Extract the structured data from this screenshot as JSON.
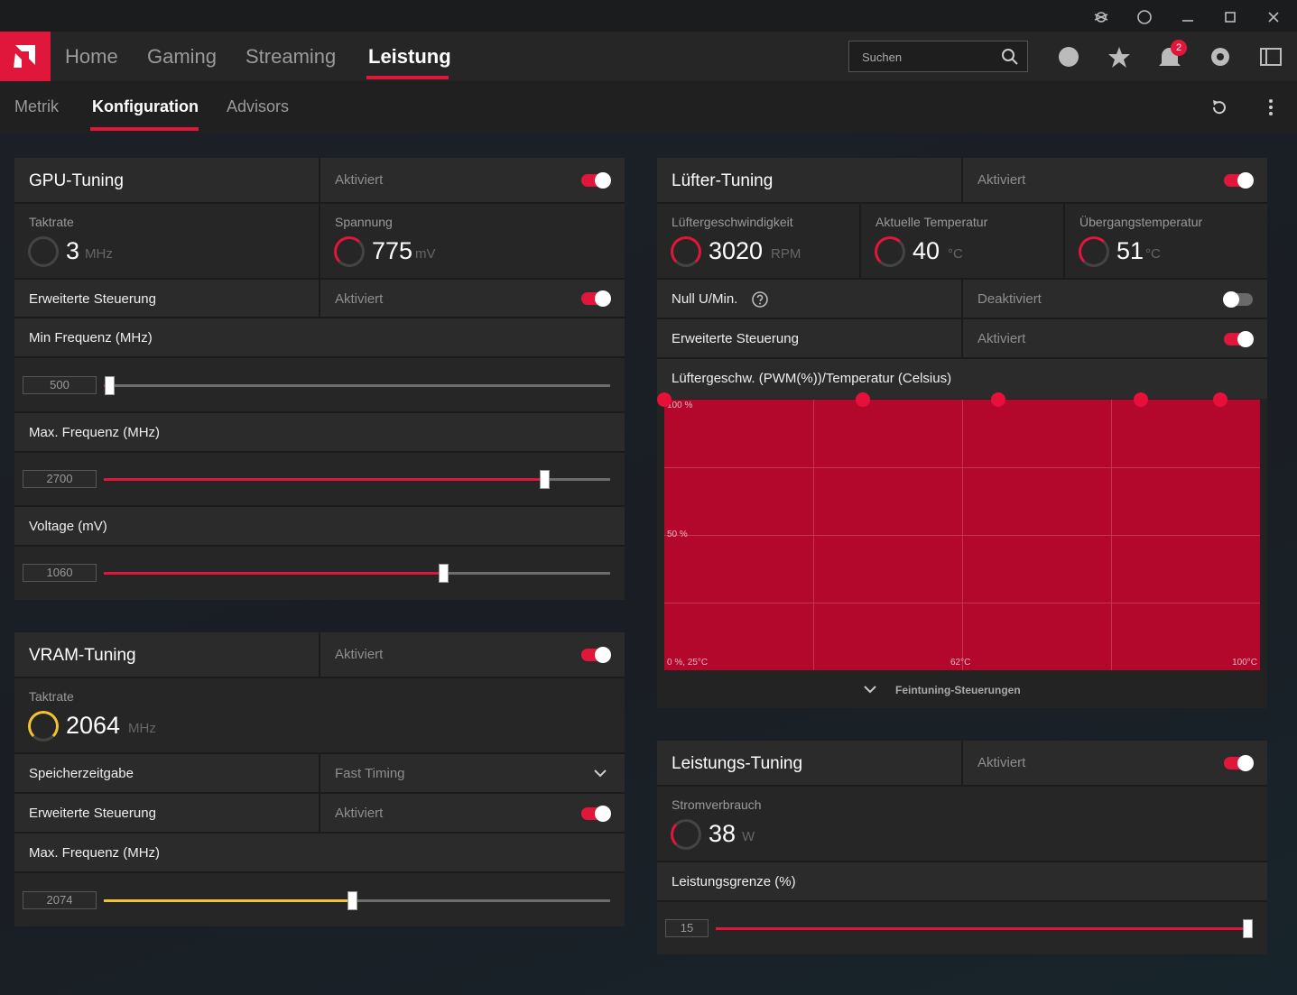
{
  "nav": {
    "tabs": [
      "Home",
      "Gaming",
      "Streaming",
      "Leistung"
    ],
    "search": "Suchen",
    "badge": "2"
  },
  "subnav": {
    "tabs": [
      "Metrik",
      "Konfiguration",
      "Advisors"
    ]
  },
  "gpu_tuning": {
    "title": "GPU-Tuning",
    "status": "Aktiviert",
    "metrics": [
      {
        "label": "Taktrate",
        "value": "3",
        "unit": "MHz"
      },
      {
        "label": "Spannung",
        "value": "775",
        "unit": "mV"
      }
    ],
    "advanced": {
      "label": "Erweiterte Steuerung",
      "status": "Aktiviert"
    },
    "sliders": [
      {
        "label": "Min Frequenz (MHz)",
        "value": "500"
      },
      {
        "label": "Max. Frequenz (MHz)",
        "value": "2700"
      },
      {
        "label": "Voltage (mV)",
        "value": "1060"
      }
    ]
  },
  "vram_tuning": {
    "title": "VRAM-Tuning",
    "status": "Aktiviert",
    "metrics": [
      {
        "label": "Taktrate",
        "value": "2064",
        "unit": "MHz"
      }
    ],
    "timing": {
      "label": "Speicherzeitgabe",
      "value": "Fast Timing"
    },
    "advanced": {
      "label": "Erweiterte Steuerung",
      "status": "Aktiviert"
    },
    "sliders": [
      {
        "label": "Max. Frequenz (MHz)",
        "value": "2074"
      }
    ]
  },
  "fan_tuning": {
    "title": "Lüfter-Tuning",
    "status": "Aktiviert",
    "metrics": [
      {
        "label": "Lüftergeschwindigkeit",
        "value": "3020",
        "unit": "RPM"
      },
      {
        "label": "Aktuelle Temperatur",
        "value": "40",
        "unit": "°C"
      },
      {
        "label": "Übergangstemperatur",
        "value": "51",
        "unit": "°C"
      }
    ],
    "zero_rpm": {
      "label": "Null U/Min.",
      "status": "Deaktiviert"
    },
    "advanced": {
      "label": "Erweiterte Steuerung",
      "status": "Aktiviert"
    },
    "curve": {
      "title": "Lüftergeschw. (PWM(%))/Temperatur (Celsius)",
      "labels": [
        "100 %",
        "50 %",
        "0 %, 25°C",
        "62°C",
        "100°C"
      ],
      "footer": "Feintuning-Steuerungen"
    }
  },
  "power_tuning": {
    "title": "Leistungs-Tuning",
    "status": "Aktiviert",
    "metrics": [
      {
        "label": "Stromverbrauch",
        "value": "38",
        "unit": "W"
      }
    ],
    "sliders": [
      {
        "label": "Leistungsgrenze (%)",
        "value": "15"
      }
    ]
  }
}
